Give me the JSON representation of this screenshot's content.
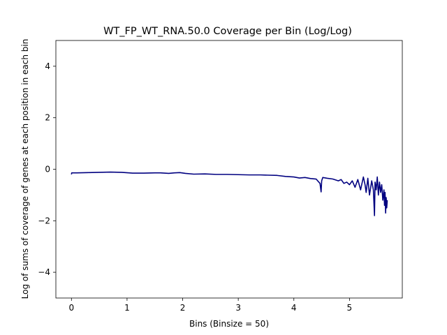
{
  "chart_data": {
    "type": "line",
    "title": "WT_FP_WT_RNA.50.0 Coverage per Bin (Log/Log)",
    "xlabel": "Bins (Binsize = 50)",
    "ylabel": "Log of sums of coverage of genes at each position in each bin",
    "xlim": [
      -0.28,
      5.95
    ],
    "ylim": [
      -5,
      5
    ],
    "xticks": [
      "0",
      "1",
      "2",
      "3",
      "4",
      "5"
    ],
    "yticks": [
      "−4",
      "−2",
      "0",
      "2",
      "4"
    ],
    "grid": false,
    "line_color": "#000080",
    "series": [
      {
        "x": [
          0,
          0.005,
          0.1,
          0.3,
          0.5,
          0.7,
          0.9,
          1.1,
          1.3,
          1.5,
          1.6,
          1.75,
          1.85,
          1.95,
          2.05,
          2.2,
          2.4,
          2.6,
          2.8,
          3.0,
          3.2,
          3.4,
          3.55,
          3.7,
          3.85,
          4.0,
          4.1,
          4.2,
          4.3,
          4.4,
          4.47,
          4.49,
          4.5,
          4.52,
          4.6,
          4.7,
          4.8,
          4.85,
          4.9,
          4.95,
          5.0,
          5.05,
          5.1,
          5.15,
          5.2,
          5.25,
          5.28,
          5.3,
          5.33,
          5.36,
          5.4,
          5.43,
          5.45,
          5.46,
          5.48,
          5.5,
          5.52,
          5.54,
          5.56,
          5.58,
          5.6,
          5.62,
          5.63,
          5.64,
          5.65,
          5.66,
          5.67,
          5.68
        ],
        "y": [
          -0.2,
          -0.14,
          -0.14,
          -0.13,
          -0.12,
          -0.11,
          -0.12,
          -0.15,
          -0.15,
          -0.14,
          -0.14,
          -0.16,
          -0.14,
          -0.13,
          -0.16,
          -0.19,
          -0.18,
          -0.2,
          -0.2,
          -0.21,
          -0.22,
          -0.22,
          -0.23,
          -0.24,
          -0.28,
          -0.3,
          -0.34,
          -0.32,
          -0.36,
          -0.38,
          -0.55,
          -0.88,
          -0.45,
          -0.32,
          -0.35,
          -0.38,
          -0.45,
          -0.4,
          -0.55,
          -0.5,
          -0.6,
          -0.45,
          -0.7,
          -0.4,
          -0.8,
          -0.3,
          -0.6,
          -0.9,
          -0.35,
          -1.0,
          -0.45,
          -0.8,
          -1.8,
          -0.5,
          -0.8,
          -0.3,
          -1.0,
          -0.5,
          -0.9,
          -0.6,
          -1.2,
          -0.8,
          -1.4,
          -0.9,
          -1.7,
          -1.1,
          -1.5,
          -1.2
        ]
      }
    ]
  }
}
